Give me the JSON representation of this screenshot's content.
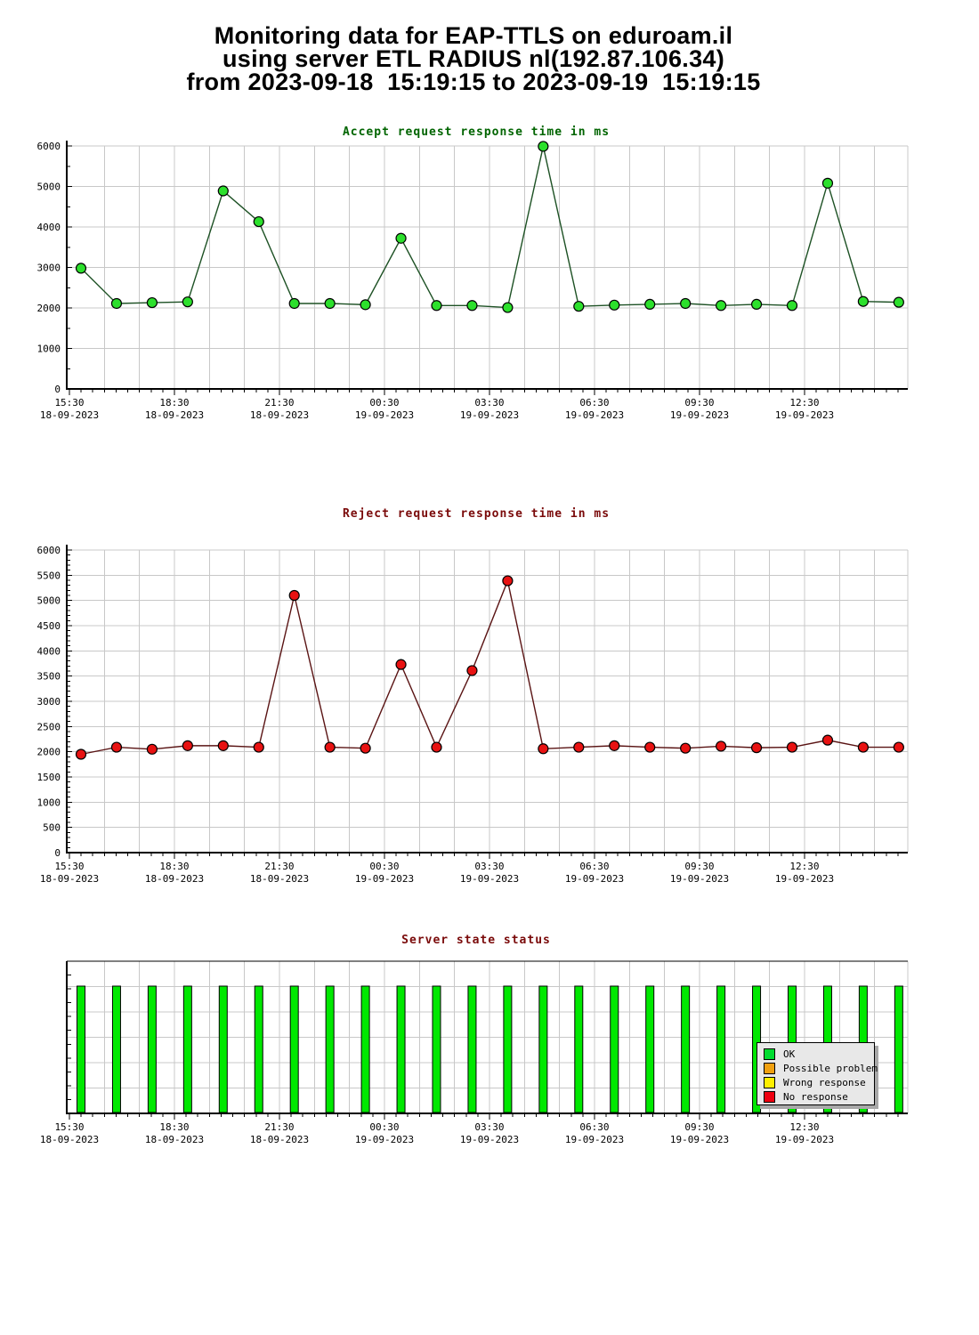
{
  "header": {
    "line1": "Monitoring data for EAP-TTLS on eduroam.il",
    "line2": "using server ETL RADIUS nl(192.87.106.34)",
    "line3": "from 2023-09-18  15:19:15 to 2023-09-19  15:19:15"
  },
  "x_axis": {
    "major_labels": [
      {
        "time": "15:30",
        "date": "18-09-2023"
      },
      {
        "time": "18:30",
        "date": "18-09-2023"
      },
      {
        "time": "21:30",
        "date": "18-09-2023"
      },
      {
        "time": "00:30",
        "date": "19-09-2023"
      },
      {
        "time": "03:30",
        "date": "19-09-2023"
      },
      {
        "time": "06:30",
        "date": "19-09-2023"
      },
      {
        "time": "09:30",
        "date": "19-09-2023"
      },
      {
        "time": "12:30",
        "date": "19-09-2023"
      }
    ]
  },
  "chart_data": [
    {
      "type": "line",
      "title": "Accept request response time in ms",
      "title_color": "#006400",
      "line_color": "#1d5124",
      "marker_color": "#2ce02c",
      "ylim": [
        0,
        6000
      ],
      "y_tick_step": 1000,
      "y_minor_step": 500,
      "grid": true,
      "xlabel": "",
      "ylabel": "",
      "values": [
        2980,
        2110,
        2130,
        2150,
        4890,
        4130,
        2110,
        2110,
        2080,
        3720,
        2060,
        2060,
        2010,
        5990,
        2040,
        2070,
        2090,
        2110,
        2060,
        2090,
        2060,
        5080,
        2160,
        2140
      ]
    },
    {
      "type": "line",
      "title": "Reject request response time in ms",
      "title_color": "#7a0a0a",
      "line_color": "#5a1414",
      "marker_color": "#e81212",
      "ylim": [
        0,
        6000
      ],
      "y_tick_step": 500,
      "y_minor_step": 100,
      "grid": true,
      "xlabel": "",
      "ylabel": "",
      "values": [
        1950,
        2090,
        2050,
        2120,
        2120,
        2090,
        5100,
        2090,
        2070,
        3730,
        2090,
        3610,
        5390,
        2060,
        2090,
        2120,
        2090,
        2070,
        2110,
        2080,
        2090,
        2230,
        2090,
        2090
      ]
    },
    {
      "type": "bar",
      "title": "Server state status",
      "title_color": "#7a0a0a",
      "bar_color": "#00e800",
      "grid": true,
      "values": [
        "OK",
        "OK",
        "OK",
        "OK",
        "OK",
        "OK",
        "OK",
        "OK",
        "OK",
        "OK",
        "OK",
        "OK",
        "OK",
        "OK",
        "OK",
        "OK",
        "OK",
        "OK",
        "OK",
        "OK",
        "OK",
        "OK",
        "OK",
        "OK"
      ],
      "legend_position": "right-inside",
      "legend": [
        {
          "label": "OK",
          "color": "#00dc30"
        },
        {
          "label": "Possible problem",
          "color": "#f0a010"
        },
        {
          "label": "Wrong response",
          "color": "#ffee00"
        },
        {
          "label": "No response",
          "color": "#ee0010"
        }
      ]
    }
  ]
}
